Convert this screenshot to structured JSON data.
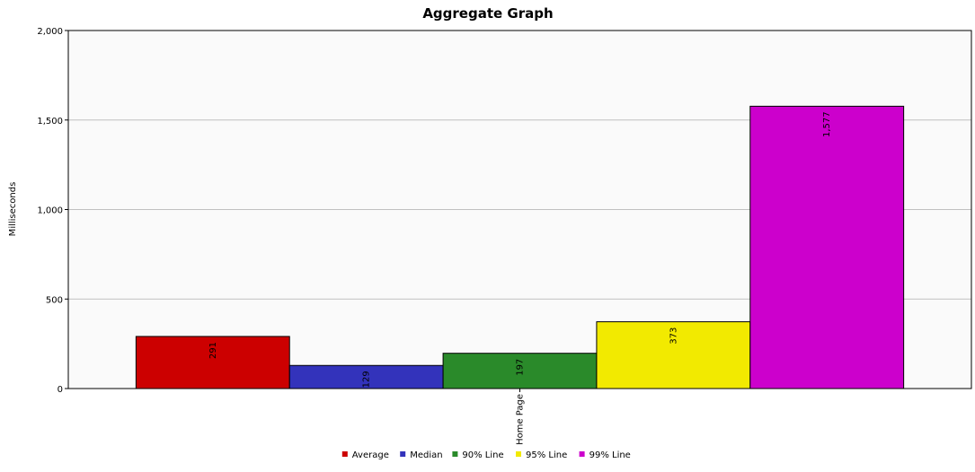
{
  "chart_data": {
    "type": "bar",
    "title": "Aggregate Graph",
    "ylabel": "Milliseconds",
    "xlabel": "",
    "categories": [
      "Home Page"
    ],
    "ylim": [
      0,
      2000
    ],
    "yticks": [
      0,
      500,
      1000,
      1500,
      2000
    ],
    "ytick_labels": [
      "0",
      "500",
      "1,000",
      "1,500",
      "2,000"
    ],
    "grid": true,
    "legend_position": "bottom",
    "series": [
      {
        "name": "Average",
        "values": [
          291
        ],
        "label": "291",
        "color": "#cc0000"
      },
      {
        "name": "Median",
        "values": [
          129
        ],
        "label": "129",
        "color": "#3333bb"
      },
      {
        "name": "90% Line",
        "values": [
          197
        ],
        "label": "197",
        "color": "#2a8a2a"
      },
      {
        "name": "95% Line",
        "values": [
          373
        ],
        "label": "373",
        "color": "#f2ea00"
      },
      {
        "name": "99% Line",
        "values": [
          1577
        ],
        "label": "1,577",
        "color": "#cc00cc"
      }
    ]
  }
}
